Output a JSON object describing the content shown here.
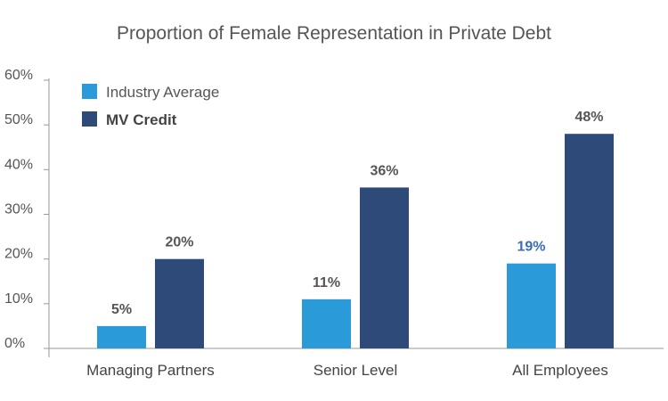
{
  "chart_data": {
    "type": "bar",
    "title": "Proportion of Female Representation in Private Debt",
    "categories": [
      "Managing Partners",
      "Senior Level",
      "All Employees"
    ],
    "series": [
      {
        "name": "Industry Average",
        "values": [
          5,
          11,
          19
        ],
        "labels": [
          "5%",
          "11%",
          "19%"
        ],
        "color": "#2b9ad8"
      },
      {
        "name": "MV Credit",
        "values": [
          20,
          36,
          48
        ],
        "labels": [
          "20%",
          "36%",
          "48%"
        ],
        "color": "#2d4a78"
      }
    ],
    "highlight_label_color": "#3b6db3",
    "highlight_label": {
      "series": 0,
      "category": 2
    },
    "ylim": [
      0,
      60
    ],
    "yticks": [
      0,
      10,
      20,
      30,
      40,
      50,
      60
    ],
    "ytick_labels": [
      "0%",
      "10%",
      "20%",
      "30%",
      "40%",
      "50%",
      "60%"
    ],
    "xlabel": "",
    "ylabel": "",
    "legend": "top-left",
    "grid": false
  }
}
